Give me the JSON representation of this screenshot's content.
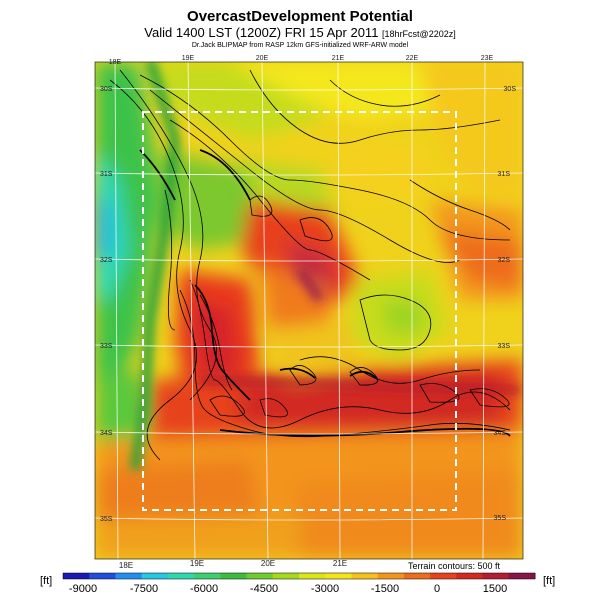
{
  "header": {
    "title": "OvercastDevelopment Potential",
    "valid_main": "Valid 1400 LST (1200Z) FRI 15 Apr 2011",
    "valid_small": "[18hrFcst@2202z]",
    "credit": "Dr.Jack BLIPMAP from RASP 12km GFS-initialized WRF-ARW model"
  },
  "map": {
    "top_lon_labels": [
      "18E",
      "19E",
      "20E",
      "21E",
      "22E",
      "23E"
    ],
    "bottom_lon_labels": [
      "18E",
      "19E",
      "20E",
      "21E"
    ],
    "left_lat_labels": [
      "30S",
      "31S",
      "32S",
      "33S",
      "34S",
      "35S"
    ],
    "right_lat_labels": [
      "30S",
      "31S",
      "32S",
      "33S",
      "34S",
      "35S"
    ],
    "terrain_note": "Terrain contours: 500 ft"
  },
  "colorbar": {
    "unit_left": "[ft]",
    "unit_right": "[ft]",
    "tick_labels": [
      "-9000",
      "-7500",
      "-6000",
      "-4500",
      "-3000",
      "-1500",
      "0",
      "1500"
    ],
    "colors": [
      "#1a1ab4",
      "#1d4ee0",
      "#1f8ff0",
      "#25c8e6",
      "#30d8b0",
      "#3ccf6e",
      "#3cbe3c",
      "#6fcb2e",
      "#a8d81e",
      "#d8e61a",
      "#f2e61a",
      "#f5c11c",
      "#f3951d",
      "#ee6c1c",
      "#e6421c",
      "#d12a20",
      "#b41e34",
      "#8a1448"
    ]
  }
}
